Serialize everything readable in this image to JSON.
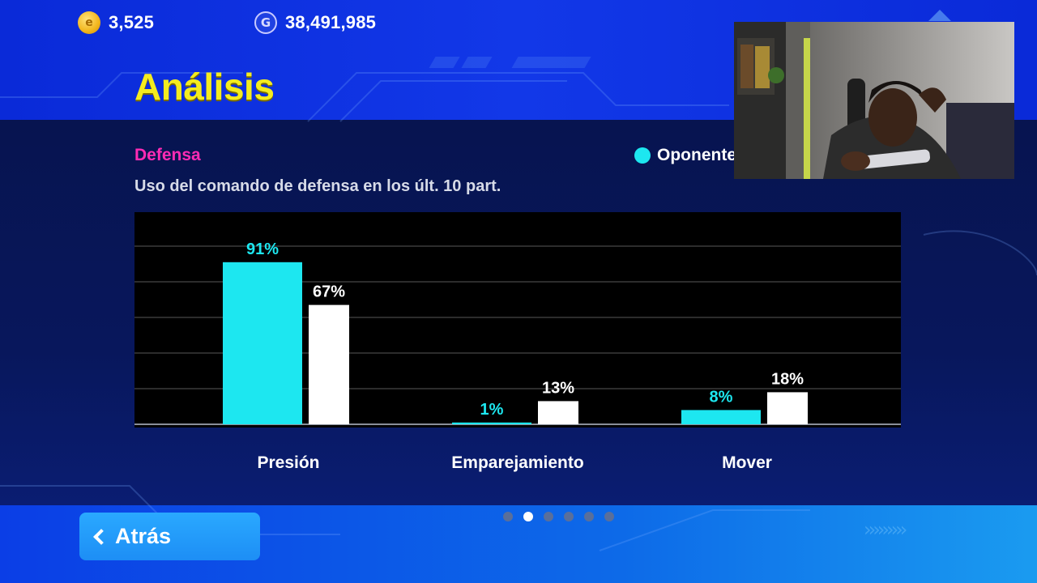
{
  "currency": {
    "coins": "3,525",
    "coin_icon_letter": "e",
    "gp": "38,491,985",
    "gp_icon_letter": "G"
  },
  "page": {
    "title": "Análisis",
    "section": "Defensa",
    "subtitle": "Uso del comando de defensa en los últ. 10 part."
  },
  "legend": {
    "opponent_label": "Oponente",
    "opponent_color": "#1de7f0",
    "self_color": "#ffffff"
  },
  "chart_data": {
    "type": "bar",
    "categories": [
      "Presión",
      "Emparejamiento",
      "Mover"
    ],
    "series": [
      {
        "name": "Oponente",
        "values": [
          91,
          1,
          8
        ],
        "labels": [
          "91%",
          "1%",
          "8%"
        ],
        "color": "#1de7f0"
      },
      {
        "values": [
          67,
          13,
          18
        ],
        "labels": [
          "67%",
          "13%",
          "18%"
        ],
        "color": "#ffffff"
      }
    ],
    "ylim": [
      0,
      100
    ],
    "grid": true
  },
  "pager": {
    "count": 6,
    "active": 1
  },
  "back_button": {
    "label": "Atrás"
  }
}
